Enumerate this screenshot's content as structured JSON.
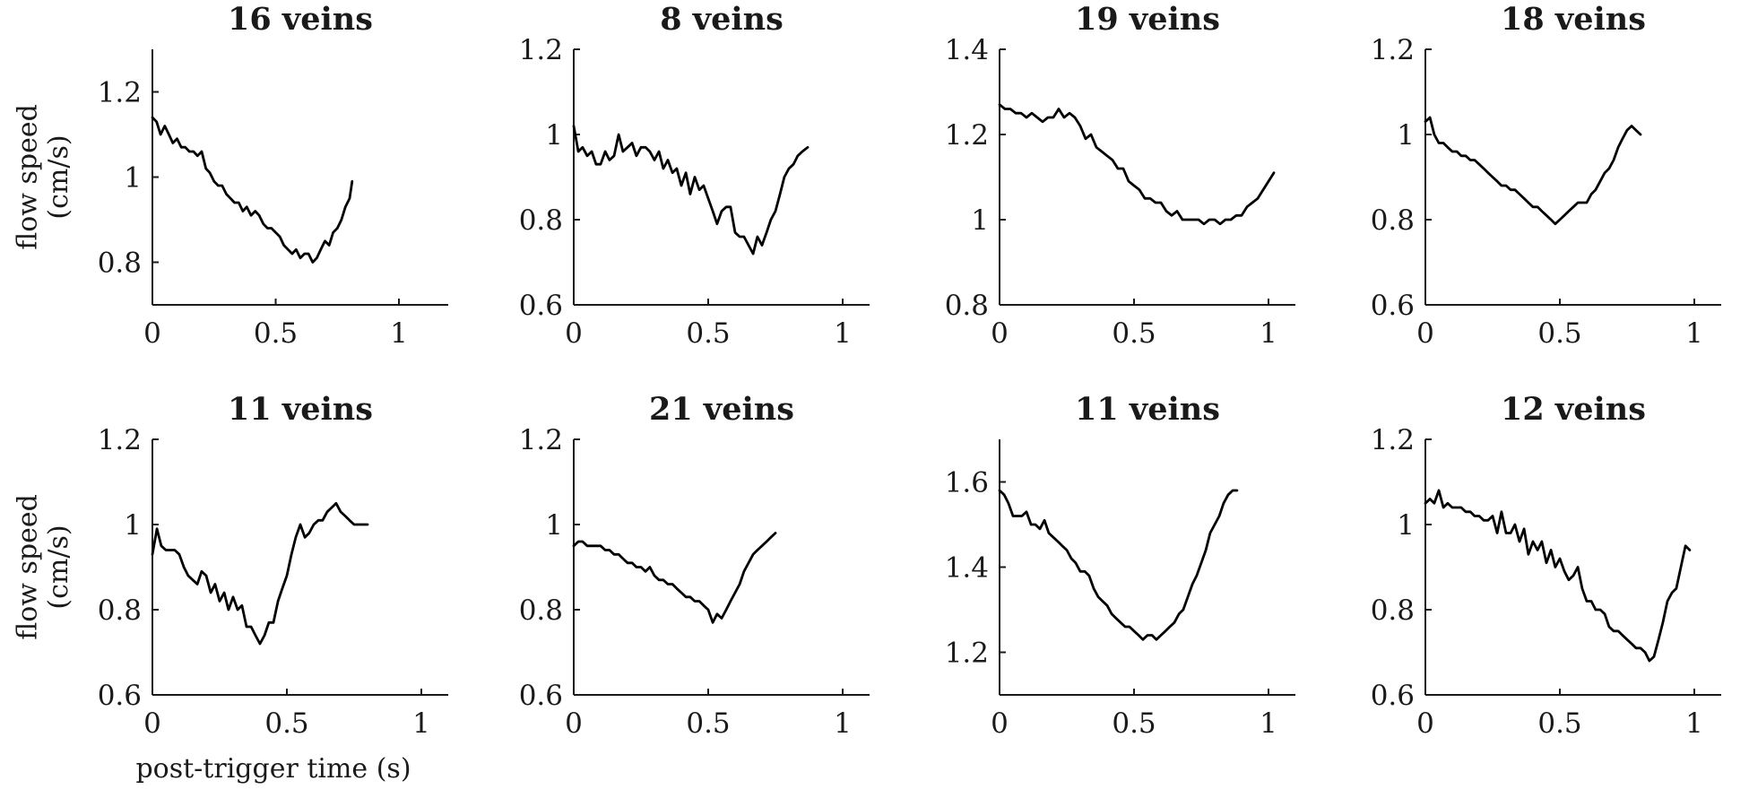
{
  "chart_data": [
    {
      "type": "line",
      "title": "16 veins",
      "ylabel": "flow speed (cm/s)",
      "xlabel": "",
      "xlim": [
        0,
        1.2
      ],
      "ylim": [
        0.7,
        1.3
      ],
      "xticks": [
        "0",
        "0.5",
        "1"
      ],
      "yticks": [
        "0.8",
        "1",
        "1.2"
      ],
      "grid": false,
      "series": [
        {
          "x": [
            0,
            0.017,
            0.033,
            0.05,
            0.067,
            0.083,
            0.1,
            0.117,
            0.133,
            0.15,
            0.167,
            0.183,
            0.2,
            0.217,
            0.233,
            0.25,
            0.267,
            0.283,
            0.3,
            0.317,
            0.333,
            0.35,
            0.367,
            0.383,
            0.4,
            0.417,
            0.433,
            0.45,
            0.467,
            0.483,
            0.5,
            0.517,
            0.533,
            0.55,
            0.567,
            0.583,
            0.6,
            0.617,
            0.633,
            0.65,
            0.667,
            0.683,
            0.7,
            0.717,
            0.733,
            0.75,
            0.767,
            0.783,
            0.8,
            0.81
          ],
          "values": [
            1.14,
            1.13,
            1.1,
            1.12,
            1.1,
            1.08,
            1.09,
            1.07,
            1.07,
            1.06,
            1.06,
            1.05,
            1.06,
            1.02,
            1.01,
            0.99,
            0.98,
            0.98,
            0.96,
            0.95,
            0.94,
            0.94,
            0.92,
            0.93,
            0.91,
            0.92,
            0.91,
            0.89,
            0.88,
            0.88,
            0.87,
            0.86,
            0.84,
            0.83,
            0.82,
            0.83,
            0.81,
            0.82,
            0.82,
            0.8,
            0.81,
            0.83,
            0.85,
            0.84,
            0.87,
            0.88,
            0.9,
            0.93,
            0.95,
            0.99
          ]
        }
      ]
    },
    {
      "type": "line",
      "title": "8 veins",
      "ylabel": "",
      "xlabel": "",
      "xlim": [
        0,
        1.1
      ],
      "ylim": [
        0.6,
        1.2
      ],
      "xticks": [
        "0",
        "0.5",
        "1"
      ],
      "yticks": [
        "0.6",
        "0.8",
        "1",
        "1.2"
      ],
      "grid": false,
      "series": [
        {
          "x": [
            0,
            0.017,
            0.033,
            0.05,
            0.067,
            0.083,
            0.1,
            0.117,
            0.133,
            0.15,
            0.167,
            0.183,
            0.2,
            0.217,
            0.233,
            0.25,
            0.267,
            0.283,
            0.3,
            0.317,
            0.333,
            0.35,
            0.367,
            0.383,
            0.4,
            0.417,
            0.433,
            0.45,
            0.467,
            0.483,
            0.5,
            0.517,
            0.533,
            0.55,
            0.567,
            0.583,
            0.6,
            0.617,
            0.633,
            0.65,
            0.667,
            0.683,
            0.7,
            0.717,
            0.733,
            0.75,
            0.767,
            0.783,
            0.8,
            0.817,
            0.833,
            0.85,
            0.87
          ],
          "values": [
            1.02,
            0.96,
            0.97,
            0.95,
            0.96,
            0.93,
            0.93,
            0.96,
            0.94,
            0.95,
            1.0,
            0.96,
            0.97,
            0.98,
            0.95,
            0.97,
            0.97,
            0.96,
            0.94,
            0.96,
            0.92,
            0.94,
            0.91,
            0.92,
            0.88,
            0.91,
            0.86,
            0.9,
            0.87,
            0.88,
            0.85,
            0.82,
            0.79,
            0.82,
            0.83,
            0.83,
            0.77,
            0.76,
            0.76,
            0.74,
            0.72,
            0.76,
            0.74,
            0.77,
            0.8,
            0.82,
            0.86,
            0.9,
            0.92,
            0.93,
            0.95,
            0.96,
            0.97
          ]
        }
      ]
    },
    {
      "type": "line",
      "title": "19 veins",
      "ylabel": "",
      "xlabel": "",
      "xlim": [
        0,
        1.1
      ],
      "ylim": [
        0.8,
        1.4
      ],
      "xticks": [
        "0",
        "0.5",
        "1"
      ],
      "yticks": [
        "0.8",
        "1",
        "1.2",
        "1.4"
      ],
      "grid": false,
      "series": [
        {
          "x": [
            0,
            0.02,
            0.04,
            0.06,
            0.08,
            0.1,
            0.12,
            0.14,
            0.16,
            0.18,
            0.2,
            0.22,
            0.24,
            0.26,
            0.28,
            0.3,
            0.32,
            0.34,
            0.36,
            0.38,
            0.4,
            0.42,
            0.44,
            0.46,
            0.48,
            0.5,
            0.52,
            0.54,
            0.56,
            0.58,
            0.6,
            0.62,
            0.64,
            0.66,
            0.68,
            0.7,
            0.72,
            0.74,
            0.76,
            0.78,
            0.8,
            0.82,
            0.84,
            0.86,
            0.88,
            0.9,
            0.92,
            0.94,
            0.96,
            0.98,
            1.0,
            1.02
          ],
          "values": [
            1.27,
            1.26,
            1.26,
            1.25,
            1.25,
            1.24,
            1.25,
            1.24,
            1.23,
            1.24,
            1.24,
            1.26,
            1.24,
            1.25,
            1.24,
            1.22,
            1.19,
            1.2,
            1.17,
            1.16,
            1.15,
            1.14,
            1.12,
            1.12,
            1.09,
            1.08,
            1.07,
            1.05,
            1.05,
            1.04,
            1.04,
            1.02,
            1.01,
            1.02,
            1.0,
            1.0,
            1.0,
            1.0,
            0.99,
            1.0,
            1.0,
            0.99,
            1.0,
            1.0,
            1.01,
            1.01,
            1.03,
            1.04,
            1.05,
            1.07,
            1.09,
            1.11
          ]
        }
      ]
    },
    {
      "type": "line",
      "title": "18 veins",
      "ylabel": "",
      "xlabel": "",
      "xlim": [
        0,
        1.1
      ],
      "ylim": [
        0.6,
        1.2
      ],
      "xticks": [
        "0",
        "0.5",
        "1"
      ],
      "yticks": [
        "0.6",
        "0.8",
        "1",
        "1.2"
      ],
      "grid": false,
      "series": [
        {
          "x": [
            0,
            0.017,
            0.033,
            0.05,
            0.067,
            0.083,
            0.1,
            0.117,
            0.133,
            0.15,
            0.167,
            0.183,
            0.2,
            0.217,
            0.233,
            0.25,
            0.267,
            0.283,
            0.3,
            0.317,
            0.333,
            0.35,
            0.367,
            0.383,
            0.4,
            0.417,
            0.433,
            0.45,
            0.467,
            0.483,
            0.5,
            0.517,
            0.533,
            0.55,
            0.567,
            0.583,
            0.6,
            0.617,
            0.633,
            0.65,
            0.667,
            0.683,
            0.7,
            0.717,
            0.733,
            0.75,
            0.767,
            0.783,
            0.8
          ],
          "values": [
            1.03,
            1.04,
            1.0,
            0.98,
            0.98,
            0.97,
            0.96,
            0.96,
            0.95,
            0.95,
            0.94,
            0.94,
            0.93,
            0.92,
            0.91,
            0.9,
            0.89,
            0.88,
            0.88,
            0.87,
            0.87,
            0.86,
            0.85,
            0.84,
            0.83,
            0.83,
            0.82,
            0.81,
            0.8,
            0.79,
            0.8,
            0.81,
            0.82,
            0.83,
            0.84,
            0.84,
            0.84,
            0.86,
            0.87,
            0.89,
            0.91,
            0.92,
            0.94,
            0.97,
            0.99,
            1.01,
            1.02,
            1.01,
            1.0
          ]
        }
      ]
    },
    {
      "type": "line",
      "title": "11 veins",
      "ylabel": "flow speed (cm/s)",
      "xlabel": "post-trigger time (s)",
      "xlim": [
        0,
        1.1
      ],
      "ylim": [
        0.6,
        1.2
      ],
      "xticks": [
        "0",
        "0.5",
        "1"
      ],
      "yticks": [
        "0.6",
        "0.8",
        "1",
        "1.2"
      ],
      "grid": false,
      "series": [
        {
          "x": [
            0,
            0.017,
            0.033,
            0.05,
            0.067,
            0.083,
            0.1,
            0.117,
            0.133,
            0.15,
            0.167,
            0.183,
            0.2,
            0.217,
            0.233,
            0.25,
            0.267,
            0.283,
            0.3,
            0.317,
            0.333,
            0.35,
            0.367,
            0.383,
            0.4,
            0.417,
            0.433,
            0.45,
            0.467,
            0.483,
            0.5,
            0.517,
            0.533,
            0.55,
            0.567,
            0.583,
            0.6,
            0.617,
            0.633,
            0.65,
            0.667,
            0.683,
            0.7,
            0.717,
            0.733,
            0.75,
            0.767,
            0.783,
            0.8
          ],
          "values": [
            0.93,
            0.99,
            0.95,
            0.94,
            0.94,
            0.94,
            0.93,
            0.9,
            0.88,
            0.87,
            0.86,
            0.89,
            0.88,
            0.84,
            0.86,
            0.82,
            0.84,
            0.8,
            0.83,
            0.8,
            0.81,
            0.76,
            0.76,
            0.74,
            0.72,
            0.74,
            0.77,
            0.77,
            0.82,
            0.85,
            0.88,
            0.93,
            0.97,
            1.0,
            0.97,
            0.98,
            1.0,
            1.01,
            1.01,
            1.03,
            1.04,
            1.05,
            1.03,
            1.02,
            1.01,
            1.0,
            1.0,
            1.0,
            1.0
          ]
        }
      ]
    },
    {
      "type": "line",
      "title": "21 veins",
      "ylabel": "",
      "xlabel": "",
      "xlim": [
        0,
        1.1
      ],
      "ylim": [
        0.6,
        1.2
      ],
      "xticks": [
        "0",
        "0.5",
        "1"
      ],
      "yticks": [
        "0.6",
        "0.8",
        "1",
        "1.2"
      ],
      "grid": false,
      "series": [
        {
          "x": [
            0,
            0.017,
            0.033,
            0.05,
            0.067,
            0.083,
            0.1,
            0.117,
            0.133,
            0.15,
            0.167,
            0.183,
            0.2,
            0.217,
            0.233,
            0.25,
            0.267,
            0.283,
            0.3,
            0.317,
            0.333,
            0.35,
            0.367,
            0.383,
            0.4,
            0.417,
            0.433,
            0.45,
            0.467,
            0.483,
            0.5,
            0.517,
            0.533,
            0.55,
            0.567,
            0.583,
            0.6,
            0.617,
            0.633,
            0.65,
            0.667,
            0.683,
            0.7,
            0.717,
            0.733,
            0.75
          ],
          "values": [
            0.95,
            0.96,
            0.96,
            0.95,
            0.95,
            0.95,
            0.95,
            0.94,
            0.94,
            0.93,
            0.93,
            0.92,
            0.91,
            0.91,
            0.9,
            0.9,
            0.89,
            0.9,
            0.88,
            0.87,
            0.87,
            0.86,
            0.86,
            0.85,
            0.84,
            0.83,
            0.83,
            0.82,
            0.82,
            0.81,
            0.8,
            0.77,
            0.79,
            0.78,
            0.8,
            0.82,
            0.84,
            0.86,
            0.89,
            0.91,
            0.93,
            0.94,
            0.95,
            0.96,
            0.97,
            0.98
          ]
        }
      ]
    },
    {
      "type": "line",
      "title": "11 veins",
      "ylabel": "",
      "xlabel": "",
      "xlim": [
        0,
        1.1
      ],
      "ylim": [
        1.1,
        1.7
      ],
      "xticks": [
        "0",
        "0.5",
        "1"
      ],
      "yticks": [
        "1.2",
        "1.4",
        "1.6"
      ],
      "grid": false,
      "series": [
        {
          "x": [
            0,
            0.017,
            0.033,
            0.05,
            0.067,
            0.083,
            0.1,
            0.117,
            0.133,
            0.15,
            0.167,
            0.183,
            0.2,
            0.217,
            0.233,
            0.25,
            0.267,
            0.283,
            0.3,
            0.317,
            0.333,
            0.35,
            0.367,
            0.383,
            0.4,
            0.417,
            0.433,
            0.45,
            0.467,
            0.483,
            0.5,
            0.517,
            0.533,
            0.55,
            0.567,
            0.583,
            0.6,
            0.617,
            0.633,
            0.65,
            0.667,
            0.683,
            0.7,
            0.717,
            0.733,
            0.75,
            0.767,
            0.783,
            0.8,
            0.817,
            0.833,
            0.85,
            0.867,
            0.883
          ],
          "values": [
            1.58,
            1.57,
            1.55,
            1.52,
            1.52,
            1.52,
            1.53,
            1.5,
            1.5,
            1.49,
            1.51,
            1.48,
            1.47,
            1.46,
            1.45,
            1.44,
            1.42,
            1.41,
            1.39,
            1.39,
            1.38,
            1.35,
            1.33,
            1.32,
            1.31,
            1.29,
            1.28,
            1.27,
            1.26,
            1.26,
            1.25,
            1.24,
            1.23,
            1.24,
            1.24,
            1.23,
            1.24,
            1.25,
            1.26,
            1.27,
            1.29,
            1.3,
            1.33,
            1.36,
            1.38,
            1.41,
            1.44,
            1.48,
            1.5,
            1.52,
            1.55,
            1.57,
            1.58,
            1.58
          ]
        }
      ]
    },
    {
      "type": "line",
      "title": "12 veins",
      "ylabel": "",
      "xlabel": "",
      "xlim": [
        0,
        1.1
      ],
      "ylim": [
        0.6,
        1.2
      ],
      "xticks": [
        "0",
        "0.5",
        "1"
      ],
      "yticks": [
        "0.6",
        "0.8",
        "1",
        "1.2"
      ],
      "grid": false,
      "series": [
        {
          "x": [
            0,
            0.017,
            0.033,
            0.05,
            0.067,
            0.083,
            0.1,
            0.117,
            0.133,
            0.15,
            0.167,
            0.183,
            0.2,
            0.217,
            0.233,
            0.25,
            0.267,
            0.283,
            0.3,
            0.317,
            0.333,
            0.35,
            0.367,
            0.383,
            0.4,
            0.417,
            0.433,
            0.45,
            0.467,
            0.483,
            0.5,
            0.517,
            0.533,
            0.55,
            0.567,
            0.583,
            0.6,
            0.617,
            0.633,
            0.65,
            0.667,
            0.683,
            0.7,
            0.717,
            0.733,
            0.75,
            0.767,
            0.783,
            0.8,
            0.817,
            0.833,
            0.85,
            0.867,
            0.883,
            0.9,
            0.917,
            0.933,
            0.95,
            0.967,
            0.983
          ],
          "values": [
            1.05,
            1.06,
            1.05,
            1.08,
            1.04,
            1.05,
            1.04,
            1.04,
            1.04,
            1.03,
            1.03,
            1.02,
            1.02,
            1.01,
            1.01,
            1.02,
            0.98,
            1.03,
            0.98,
            0.98,
            1.0,
            0.96,
            0.99,
            0.93,
            0.96,
            0.94,
            0.96,
            0.91,
            0.94,
            0.9,
            0.92,
            0.89,
            0.87,
            0.88,
            0.9,
            0.85,
            0.82,
            0.82,
            0.8,
            0.8,
            0.79,
            0.76,
            0.75,
            0.75,
            0.74,
            0.73,
            0.72,
            0.71,
            0.71,
            0.7,
            0.68,
            0.69,
            0.73,
            0.77,
            0.82,
            0.84,
            0.85,
            0.9,
            0.95,
            0.94
          ]
        }
      ]
    }
  ]
}
